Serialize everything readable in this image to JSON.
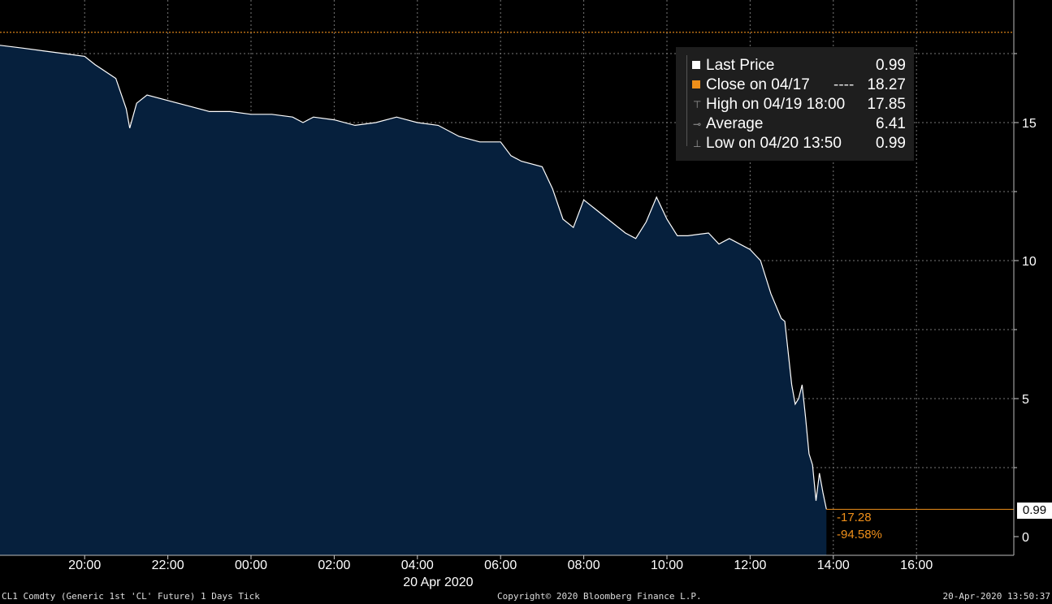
{
  "chart_data": {
    "type": "area",
    "security": "CL1 Comdty (Generic 1st 'CL' Future) 1 Days  Tick",
    "y_ticks": [
      "0",
      "5",
      "10",
      "15"
    ],
    "y_tick_values": [
      0,
      5,
      10,
      15
    ],
    "ylim": [
      -0.5,
      19.2
    ],
    "x_ticks": [
      "20:00",
      "22:00",
      "00:00",
      "02:00",
      "04:00",
      "06:00",
      "08:00",
      "10:00",
      "12:00",
      "14:00",
      "16:00"
    ],
    "x_date_label": "20 Apr 2020",
    "xlim_hours": [
      18.3,
      18.05
    ],
    "series": [
      {
        "name": "Last Price",
        "x": [
          "18:00",
          "18:30",
          "19:00",
          "19:30",
          "20:00",
          "20:15",
          "20:45",
          "21:00",
          "21:05",
          "21:15",
          "21:30",
          "22:00",
          "22:30",
          "23:00",
          "23:30",
          "00:00",
          "00:30",
          "01:00",
          "01:15",
          "01:30",
          "02:00",
          "02:30",
          "03:00",
          "03:30",
          "04:00",
          "04:30",
          "05:00",
          "05:30",
          "06:00",
          "06:15",
          "06:30",
          "07:00",
          "07:15",
          "07:30",
          "07:45",
          "08:00",
          "08:15",
          "08:30",
          "09:00",
          "09:15",
          "09:30",
          "09:45",
          "10:00",
          "10:15",
          "10:30",
          "11:00",
          "11:15",
          "11:30",
          "12:00",
          "12:15",
          "12:30",
          "12:45",
          "12:50",
          "13:00",
          "13:05",
          "13:10",
          "13:15",
          "13:20",
          "13:25",
          "13:30",
          "13:35",
          "13:40",
          "13:45",
          "13:50"
        ],
        "y": [
          17.8,
          17.7,
          17.6,
          17.5,
          17.4,
          17.1,
          16.6,
          15.5,
          14.8,
          15.7,
          16.0,
          15.8,
          15.6,
          15.4,
          15.4,
          15.3,
          15.3,
          15.2,
          15.0,
          15.2,
          15.1,
          14.9,
          15.0,
          15.2,
          15.0,
          14.9,
          14.5,
          14.3,
          14.3,
          13.8,
          13.6,
          13.4,
          12.6,
          11.5,
          11.2,
          12.2,
          11.9,
          11.6,
          11.0,
          10.8,
          11.4,
          12.3,
          11.5,
          10.9,
          10.9,
          11.0,
          10.6,
          10.8,
          10.4,
          10.0,
          8.8,
          7.9,
          7.8,
          5.5,
          4.8,
          5.0,
          5.5,
          4.3,
          3.0,
          2.6,
          1.3,
          2.3,
          1.6,
          0.99
        ]
      }
    ],
    "close_line": 18.27,
    "legend": [
      {
        "label": "Last Price",
        "value": "0.99",
        "color": "#ffffff",
        "glyph": "square"
      },
      {
        "label": "Close on 04/17",
        "dash": "----",
        "value": "18.27",
        "color": "#f0901a",
        "glyph": "square"
      },
      {
        "label": "High on 04/19 18:00",
        "value": "17.85",
        "color": "#999999",
        "glyph": "⊤"
      },
      {
        "label": "Average",
        "value": "6.41",
        "color": "#999999",
        "glyph": "⊸"
      },
      {
        "label": "Low on 04/20 13:50",
        "value": "0.99",
        "color": "#999999",
        "glyph": "⊥"
      }
    ],
    "last_value_label": "0.99",
    "net_change": "-17.28",
    "pct_change": "-94.58%",
    "colors": {
      "area": "#06203d",
      "line": "#ffffff",
      "close": "#f0901a",
      "grid": "#777777",
      "background": "#000000"
    }
  },
  "footer": {
    "left": "CL1 Comdty (Generic 1st 'CL' Future) 1 Days  Tick",
    "center": "Copyright© 2020 Bloomberg Finance L.P.",
    "right": "20-Apr-2020 13:50:37"
  }
}
